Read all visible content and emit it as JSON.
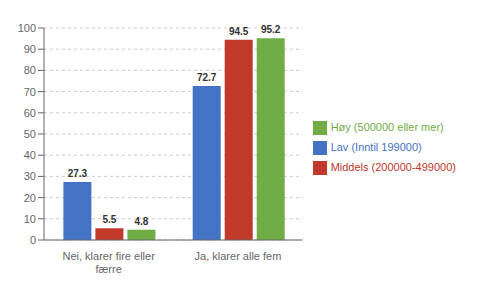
{
  "chart_data": {
    "type": "bar",
    "categories": [
      "Nei, klarer fire eller\nfærre",
      "Ja, klarer alle fem"
    ],
    "series": [
      {
        "name": "Lav (Inntil 199000)",
        "color": "#4472C4",
        "values": [
          27.3,
          72.7
        ]
      },
      {
        "name": "Middels (200000-499000)",
        "color": "#C0392B",
        "values": [
          5.5,
          94.5
        ]
      },
      {
        "name": "Høy (500000 eller mer)",
        "color": "#70AD47",
        "values": [
          4.8,
          95.2
        ]
      }
    ],
    "ylim": [
      0,
      100
    ],
    "yticks": [
      0,
      10,
      20,
      30,
      40,
      50,
      60,
      70,
      80,
      90,
      100
    ],
    "grid": true,
    "legend": "right",
    "data_labels": true
  }
}
